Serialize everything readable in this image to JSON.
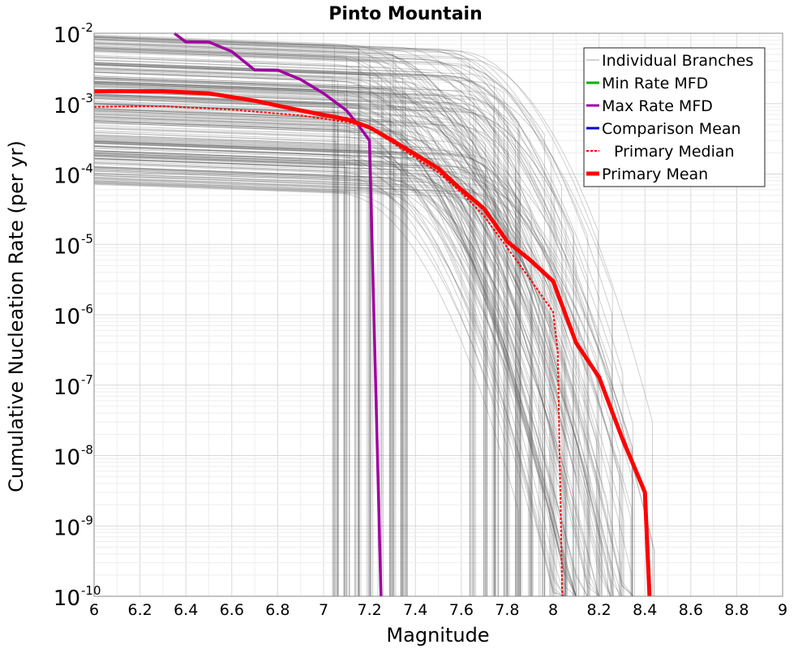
{
  "chart_data": {
    "type": "line",
    "title": "Pinto Mountain",
    "xlabel": "Magnitude",
    "ylabel": "Cumulative Nucleation Rate (per yr)",
    "xlim": [
      6,
      9
    ],
    "ylim": [
      1e-10,
      0.01
    ],
    "yscale": "log",
    "grid": true,
    "legend_position": "top-right",
    "x_ticks": [
      "6",
      "6.2",
      "6.4",
      "6.6",
      "6.8",
      "7",
      "7.2",
      "7.4",
      "7.6",
      "7.8",
      "8",
      "8.2",
      "8.4",
      "8.6",
      "8.8",
      "9"
    ],
    "y_ticks": [
      {
        "base": "10",
        "exp": "-10",
        "value": 1e-10
      },
      {
        "base": "10",
        "exp": "-9",
        "value": 1e-09
      },
      {
        "base": "10",
        "exp": "-8",
        "value": 1e-08
      },
      {
        "base": "10",
        "exp": "-7",
        "value": 1e-07
      },
      {
        "base": "10",
        "exp": "-6",
        "value": 1e-06
      },
      {
        "base": "10",
        "exp": "-5",
        "value": 1e-05
      },
      {
        "base": "10",
        "exp": "-4",
        "value": 0.0001
      },
      {
        "base": "10",
        "exp": "-3",
        "value": 0.001
      },
      {
        "base": "10",
        "exp": "-2",
        "value": 0.01
      }
    ],
    "legend": [
      {
        "label": "Individual Branches",
        "color": "#aaaaaa",
        "style": "thin"
      },
      {
        "label": "Min Rate MFD",
        "color": "#00b000",
        "style": "solid"
      },
      {
        "label": "Max Rate MFD",
        "color": "#a000a0",
        "style": "solid"
      },
      {
        "label": "Comparison Mean",
        "color": "#0000d0",
        "style": "solid"
      },
      {
        "label": "Primary Median",
        "color": "#ff0000",
        "style": "dotted"
      },
      {
        "label": "Primary Mean",
        "color": "#ff0000",
        "style": "thick"
      }
    ],
    "series": [
      {
        "name": "Max Rate MFD",
        "color": "#a000a0",
        "x": [
          6.35,
          6.4,
          6.5,
          6.6,
          6.7,
          6.8,
          6.9,
          7.0,
          7.1,
          7.15,
          7.2,
          7.25
        ],
        "y": [
          0.01,
          0.0075,
          0.0075,
          0.0055,
          0.003,
          0.003,
          0.0022,
          0.0014,
          0.0008,
          0.0005,
          0.0003,
          1e-10
        ]
      },
      {
        "name": "Primary Median",
        "color": "#ff0000",
        "x": [
          6.0,
          6.3,
          6.6,
          6.9,
          7.1,
          7.2,
          7.3,
          7.4,
          7.5,
          7.6,
          7.7,
          7.8,
          7.9,
          8.0,
          8.02,
          8.04
        ],
        "y": [
          0.0009,
          0.00092,
          0.00082,
          0.00068,
          0.00055,
          0.00045,
          0.00028,
          0.00017,
          0.000105,
          5.5e-05,
          2.5e-05,
          9e-06,
          3.2e-06,
          1.1e-06,
          3e-07,
          1e-10
        ]
      },
      {
        "name": "Primary Mean",
        "color": "#ff0000",
        "x": [
          6.0,
          6.3,
          6.5,
          6.7,
          6.9,
          7.1,
          7.2,
          7.3,
          7.4,
          7.5,
          7.6,
          7.7,
          7.8,
          7.9,
          8.0,
          8.1,
          8.2,
          8.3,
          8.4,
          8.42
        ],
        "y": [
          0.0015,
          0.0015,
          0.0014,
          0.0011,
          0.0008,
          0.0006,
          0.00046,
          0.0003,
          0.00019,
          0.00012,
          6e-05,
          3.2e-05,
          1.1e-05,
          6e-06,
          3e-06,
          4e-07,
          1.3e-07,
          1.8e-08,
          3e-09,
          1e-10
        ]
      }
    ]
  }
}
